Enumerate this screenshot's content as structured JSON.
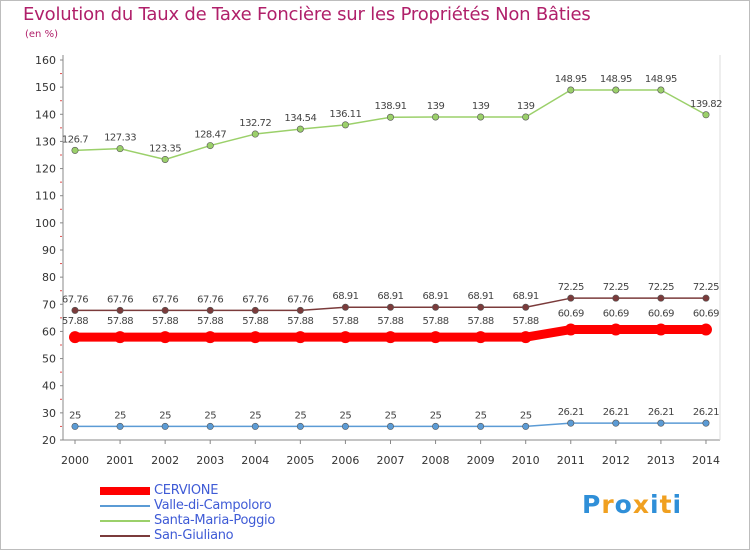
{
  "chart_data": {
    "type": "line",
    "title": "Evolution du Taux de Taxe Foncière sur les Propriétés Non Bâties",
    "ylabel": "(en %)",
    "xlabel": "",
    "ylim": [
      20,
      160
    ],
    "yticks": [
      20,
      30,
      40,
      50,
      60,
      70,
      80,
      90,
      100,
      110,
      120,
      130,
      140,
      150,
      160
    ],
    "categories": [
      "2000",
      "2001",
      "2002",
      "2003",
      "2004",
      "2005",
      "2006",
      "2007",
      "2008",
      "2009",
      "2010",
      "2011",
      "2012",
      "2013",
      "2014"
    ],
    "grid": false,
    "legend_position": "bottom-left",
    "series": [
      {
        "name": "CERVIONE",
        "color": "#ff0000",
        "values": [
          57.88,
          57.88,
          57.88,
          57.88,
          57.88,
          57.88,
          57.88,
          57.88,
          57.88,
          57.88,
          57.88,
          60.69,
          60.69,
          60.69,
          60.69
        ],
        "labels": [
          "57.88",
          "57.88",
          "57.88",
          "57.88",
          "57.88",
          "57.88",
          "57.88",
          "57.88",
          "57.88",
          "57.88",
          "57.88",
          "60.69",
          "60.69",
          "60.69",
          "60.69"
        ]
      },
      {
        "name": "Valle-di-Campoloro",
        "color": "#5b9bd5",
        "values": [
          25,
          25,
          25,
          25,
          25,
          25,
          25,
          25,
          25,
          25,
          25,
          26.21,
          26.21,
          26.21,
          26.21
        ],
        "labels": [
          "25",
          "25",
          "25",
          "25",
          "25",
          "25",
          "25",
          "25",
          "25",
          "25",
          "25",
          "26.21",
          "26.21",
          "26.21",
          "26.21"
        ]
      },
      {
        "name": "Santa-Maria-Poggio",
        "color": "#9bd06a",
        "values": [
          126.7,
          127.33,
          123.35,
          128.47,
          132.72,
          134.54,
          136.11,
          138.91,
          139,
          139,
          139,
          148.95,
          148.95,
          148.95,
          139.82
        ],
        "labels": [
          "126.7",
          "127.33",
          "123.35",
          "128.47",
          "132.72",
          "134.54",
          "136.11",
          "138.91",
          "139",
          "139",
          "139",
          "148.95",
          "148.95",
          "148.95",
          "139.82"
        ]
      },
      {
        "name": "San-Giuliano",
        "color": "#7b3b3b",
        "values": [
          67.76,
          67.76,
          67.76,
          67.76,
          67.76,
          67.76,
          68.91,
          68.91,
          68.91,
          68.91,
          68.91,
          72.25,
          72.25,
          72.25,
          72.25
        ],
        "labels": [
          "67.76",
          "67.76",
          "67.76",
          "67.76",
          "67.76",
          "67.76",
          "68.91",
          "68.91",
          "68.91",
          "68.91",
          "68.91",
          "72.25",
          "72.25",
          "72.25",
          "72.25"
        ]
      }
    ]
  },
  "brand": {
    "letters": [
      "P",
      "r",
      "o",
      "x",
      "i",
      "t",
      "i"
    ],
    "colors": [
      "#2f8fd8",
      "#f0a020",
      "#2f8fd8",
      "#f0a020",
      "#2f8fd8",
      "#f0a020",
      "#2f8fd8"
    ]
  }
}
